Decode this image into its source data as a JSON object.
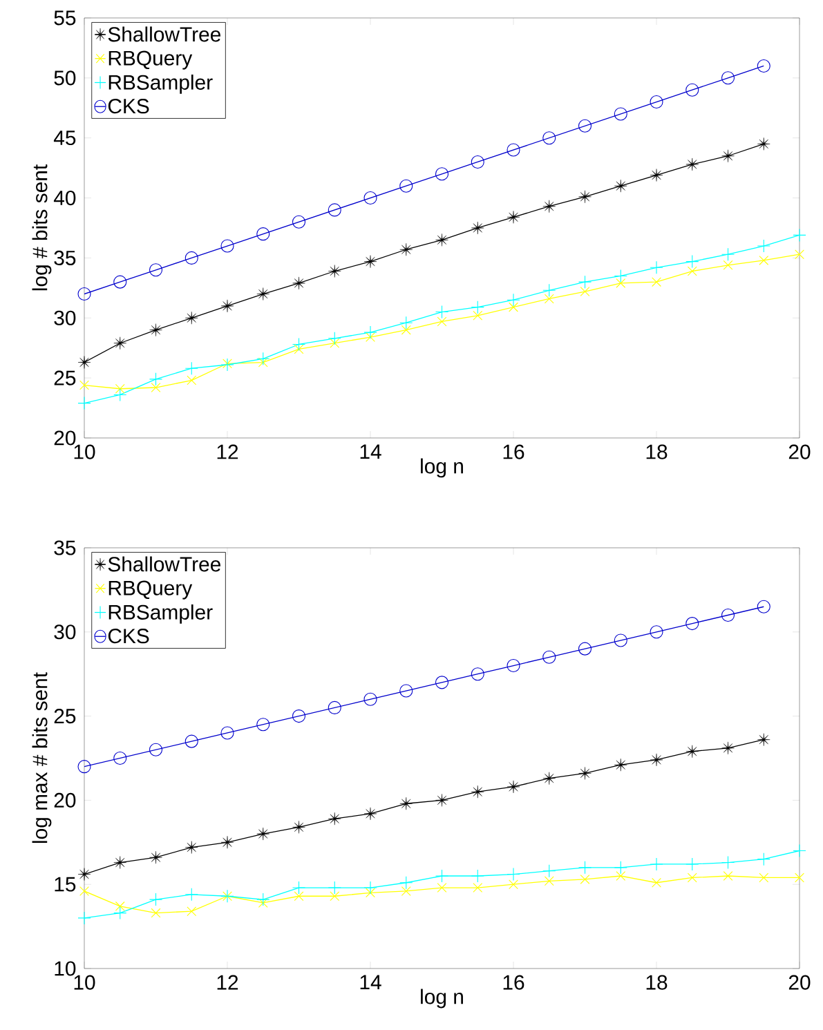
{
  "chart_data": [
    {
      "type": "line",
      "xlabel": "log n",
      "ylabel": "log # bits sent",
      "xlim": [
        10,
        20
      ],
      "ylim": [
        20,
        55
      ],
      "xticks": [
        10,
        12,
        14,
        16,
        18,
        20
      ],
      "yticks": [
        20,
        25,
        30,
        35,
        40,
        45,
        50,
        55
      ],
      "legend": "top left",
      "x": [
        10,
        10.5,
        11,
        11.5,
        12,
        12.5,
        13,
        13.5,
        14,
        14.5,
        15,
        15.5,
        16,
        16.5,
        17,
        17.5,
        18,
        18.5,
        19,
        19.5,
        20
      ],
      "series": [
        {
          "name": "ShallowTree",
          "color": "#000000",
          "marker": "star",
          "values": [
            26.3,
            27.9,
            29.0,
            30.0,
            31.0,
            32.0,
            32.9,
            33.9,
            34.7,
            35.7,
            36.5,
            37.5,
            38.4,
            39.3,
            40.1,
            41.0,
            41.9,
            42.8,
            43.5,
            44.5,
            null
          ]
        },
        {
          "name": "RBQuery",
          "color": "#ffff00",
          "marker": "cross",
          "values": [
            24.4,
            24.1,
            24.2,
            24.8,
            26.2,
            26.3,
            27.4,
            27.9,
            28.4,
            29.0,
            29.7,
            30.2,
            30.9,
            31.6,
            32.2,
            32.9,
            33.0,
            33.9,
            34.4,
            34.8,
            35.3
          ]
        },
        {
          "name": "RBSampler",
          "color": "#00ffff",
          "marker": "plus",
          "values": [
            22.9,
            23.6,
            24.9,
            25.8,
            26.1,
            26.6,
            27.8,
            28.3,
            28.8,
            29.6,
            30.5,
            30.9,
            31.5,
            32.3,
            33.0,
            33.5,
            34.2,
            34.7,
            35.3,
            36.0,
            36.9
          ]
        },
        {
          "name": "CKS",
          "color": "#0000cc",
          "marker": "circle",
          "values": [
            32,
            33,
            34,
            35,
            36,
            37,
            38,
            39,
            40,
            41,
            42,
            43,
            44,
            45,
            46,
            47,
            48,
            49,
            50,
            51,
            null
          ]
        }
      ]
    },
    {
      "type": "line",
      "xlabel": "log n",
      "ylabel": "log max # bits sent",
      "xlim": [
        10,
        20
      ],
      "ylim": [
        10,
        35
      ],
      "xticks": [
        10,
        12,
        14,
        16,
        18,
        20
      ],
      "yticks": [
        10,
        15,
        20,
        25,
        30,
        35
      ],
      "legend": "top left",
      "x": [
        10,
        10.5,
        11,
        11.5,
        12,
        12.5,
        13,
        13.5,
        14,
        14.5,
        15,
        15.5,
        16,
        16.5,
        17,
        17.5,
        18,
        18.5,
        19,
        19.5,
        20
      ],
      "series": [
        {
          "name": "ShallowTree",
          "color": "#000000",
          "marker": "star",
          "values": [
            15.6,
            16.3,
            16.6,
            17.2,
            17.5,
            18.0,
            18.4,
            18.9,
            19.2,
            19.8,
            20.0,
            20.5,
            20.8,
            21.3,
            21.6,
            22.1,
            22.4,
            22.9,
            23.1,
            23.6,
            null
          ]
        },
        {
          "name": "RBQuery",
          "color": "#ffff00",
          "marker": "cross",
          "values": [
            14.6,
            13.7,
            13.3,
            13.4,
            14.3,
            13.9,
            14.3,
            14.3,
            14.5,
            14.6,
            14.8,
            14.8,
            15.0,
            15.2,
            15.3,
            15.5,
            15.1,
            15.4,
            15.5,
            15.4,
            15.4
          ]
        },
        {
          "name": "RBSampler",
          "color": "#00ffff",
          "marker": "plus",
          "values": [
            13.0,
            13.3,
            14.1,
            14.4,
            14.3,
            14.1,
            14.8,
            14.8,
            14.8,
            15.1,
            15.5,
            15.5,
            15.6,
            15.8,
            16.0,
            16.0,
            16.2,
            16.2,
            16.3,
            16.5,
            17.0
          ]
        },
        {
          "name": "CKS",
          "color": "#0000cc",
          "marker": "circle",
          "values": [
            22,
            22.5,
            23,
            23.5,
            24,
            24.5,
            25,
            25.5,
            26,
            26.5,
            27,
            27.5,
            28,
            28.5,
            29,
            29.5,
            30,
            30.5,
            31,
            31.5,
            null
          ]
        }
      ]
    }
  ]
}
